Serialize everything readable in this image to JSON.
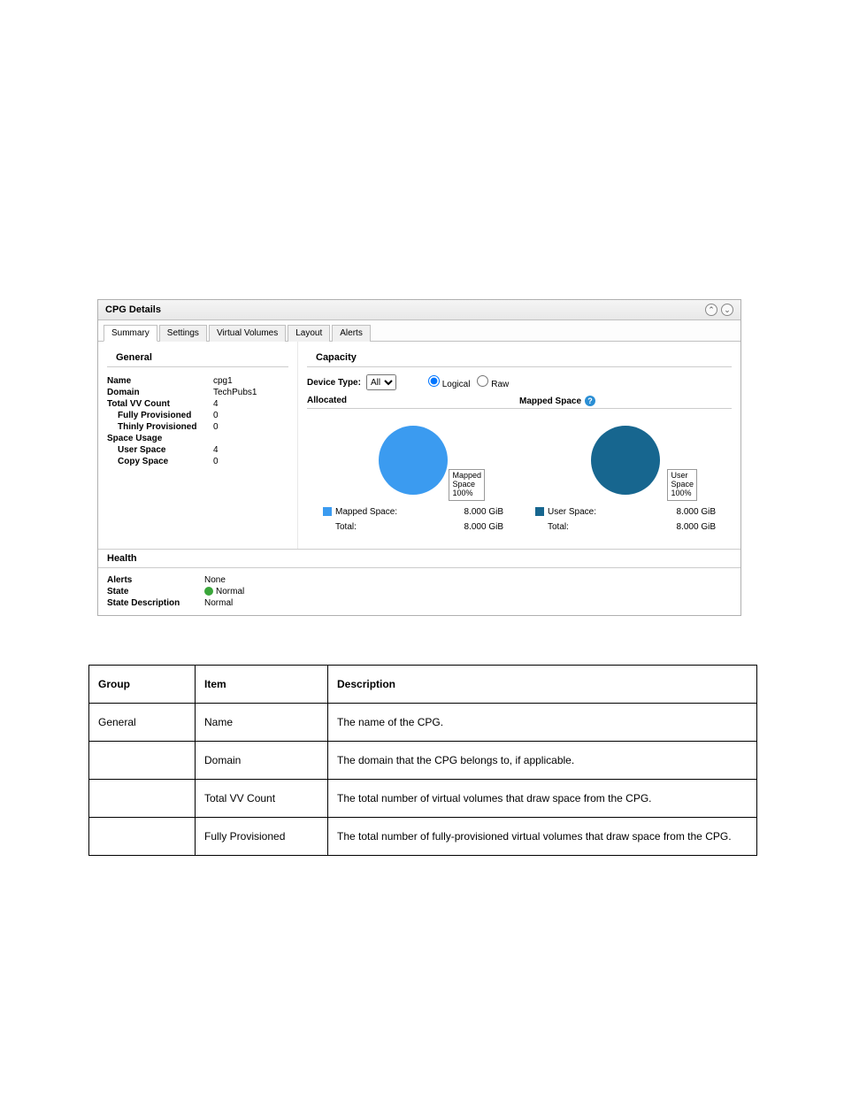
{
  "window": {
    "title": "CPG Details",
    "tabs": [
      "Summary",
      "Settings",
      "Virtual Volumes",
      "Layout",
      "Alerts"
    ],
    "active_tab": 0
  },
  "general": {
    "header": "General",
    "name_label": "Name",
    "name": "cpg1",
    "domain_label": "Domain",
    "domain": "TechPubs1",
    "total_vv_label": "Total VV Count",
    "total_vv": "4",
    "fully_label": "Fully Provisioned",
    "fully": "0",
    "thinly_label": "Thinly Provisioned",
    "thinly": "0",
    "space_usage_label": "Space Usage",
    "user_space_label": "User Space",
    "user_space": "4",
    "copy_space_label": "Copy Space",
    "copy_space": "0"
  },
  "capacity": {
    "header": "Capacity",
    "device_type_label": "Device Type:",
    "device_type_value": "All",
    "radio_logical": "Logical",
    "radio_raw": "Raw",
    "allocated_header": "Allocated",
    "mapped_header": "Mapped Space",
    "allocated": {
      "pie_color": "#3b9bf0",
      "slice_pct": 100,
      "callout_l1": "Mapped",
      "callout_l2": "Space",
      "callout_l3": "100%",
      "legend_label": "Mapped Space:",
      "legend_value": "8.000 GiB",
      "total_label": "Total:",
      "total_value": "8.000 GiB"
    },
    "mapped": {
      "pie_color": "#17668f",
      "slice_pct": 100,
      "callout_l1": "User",
      "callout_l2": "Space",
      "callout_l3": "100%",
      "legend_label": "User Space:",
      "legend_value": "8.000 GiB",
      "total_label": "Total:",
      "total_value": "8.000 GiB"
    }
  },
  "health": {
    "header": "Health",
    "alerts_label": "Alerts",
    "alerts": "None",
    "state_label": "State",
    "state": "Normal",
    "state_color": "#3aa63a",
    "desc_label": "State Description",
    "desc": "Normal"
  },
  "table": {
    "columns": [
      "Group",
      "Item",
      "Description"
    ],
    "rows": [
      [
        "General",
        "Name",
        "The name of the CPG."
      ],
      [
        "",
        "Domain",
        "The domain that the CPG belongs to, if applicable."
      ],
      [
        "",
        "Total VV Count",
        "The total number of virtual volumes that draw space from the CPG."
      ],
      [
        "",
        "Fully Provisioned",
        "The total number of fully-provisioned virtual volumes that draw space from the CPG."
      ]
    ]
  }
}
